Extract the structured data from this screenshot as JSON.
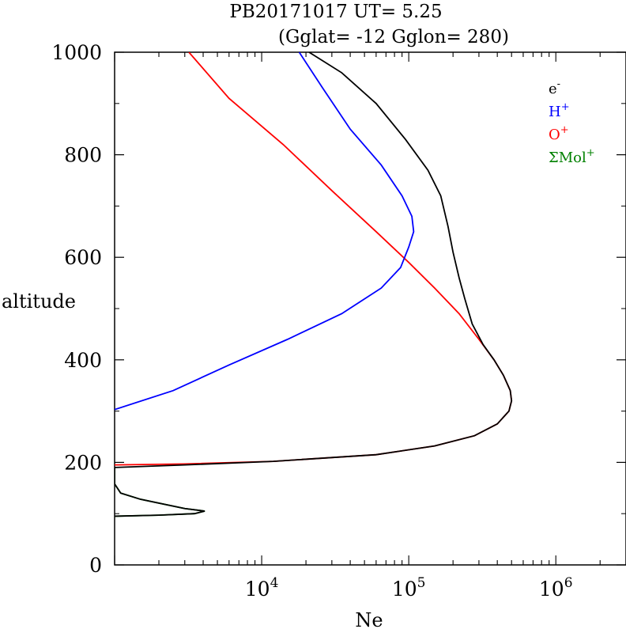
{
  "title_line1": "PB20171017   UT=  5.25",
  "title_line2": "(Gglat= -12   Gglon=  280)",
  "chart_data": {
    "type": "line",
    "xlabel": "Ne",
    "ylabel": "altitude",
    "x_scale": "log",
    "xlim": [
      1000,
      3000000
    ],
    "ylim": [
      0,
      1000
    ],
    "x_ticks": [
      {
        "value": 10000,
        "base": "10",
        "exp": "4"
      },
      {
        "value": 100000,
        "base": "10",
        "exp": "5"
      },
      {
        "value": 1000000,
        "base": "10",
        "exp": "6"
      }
    ],
    "y_ticks": [
      0,
      200,
      400,
      600,
      800,
      1000
    ],
    "legend_placement": "top-right",
    "series": [
      {
        "name": "e",
        "name_sup": "-",
        "color": "#000000",
        "points": [
          [
            1000,
            95
          ],
          [
            2000,
            97
          ],
          [
            3500,
            100
          ],
          [
            4100,
            105
          ],
          [
            3000,
            110
          ],
          [
            1500,
            128
          ],
          [
            1100,
            140
          ],
          [
            1000,
            158
          ],
          [
            1000,
            190
          ],
          [
            3000,
            195
          ],
          [
            12000,
            202
          ],
          [
            60000,
            215
          ],
          [
            150000,
            232
          ],
          [
            280000,
            252
          ],
          [
            400000,
            275
          ],
          [
            480000,
            300
          ],
          [
            500000,
            320
          ],
          [
            490000,
            340
          ],
          [
            440000,
            370
          ],
          [
            380000,
            400
          ],
          [
            320000,
            430
          ],
          [
            270000,
            470
          ],
          [
            240000,
            520
          ],
          [
            220000,
            560
          ],
          [
            200000,
            610
          ],
          [
            185000,
            660
          ],
          [
            165000,
            720
          ],
          [
            135000,
            770
          ],
          [
            95000,
            830
          ],
          [
            60000,
            900
          ],
          [
            35000,
            960
          ],
          [
            21000,
            1000
          ]
        ]
      },
      {
        "name": "H",
        "name_sup": "+",
        "color": "#0000ff",
        "points": [
          [
            1000,
            303
          ],
          [
            2500,
            340
          ],
          [
            6000,
            390
          ],
          [
            15000,
            440
          ],
          [
            35000,
            490
          ],
          [
            65000,
            540
          ],
          [
            88000,
            580
          ],
          [
            100000,
            620
          ],
          [
            108000,
            650
          ],
          [
            105000,
            680
          ],
          [
            90000,
            720
          ],
          [
            65000,
            780
          ],
          [
            40000,
            850
          ],
          [
            26000,
            930
          ],
          [
            18000,
            1000
          ]
        ]
      },
      {
        "name": "O",
        "name_sup": "+",
        "color": "#ff0000",
        "points": [
          [
            1000,
            195
          ],
          [
            3000,
            197
          ],
          [
            12000,
            202
          ],
          [
            60000,
            215
          ],
          [
            150000,
            232
          ],
          [
            280000,
            252
          ],
          [
            400000,
            275
          ],
          [
            480000,
            300
          ],
          [
            500000,
            320
          ],
          [
            490000,
            340
          ],
          [
            440000,
            370
          ],
          [
            380000,
            400
          ],
          [
            300000,
            440
          ],
          [
            220000,
            490
          ],
          [
            150000,
            540
          ],
          [
            100000,
            590
          ],
          [
            60000,
            650
          ],
          [
            30000,
            730
          ],
          [
            14000,
            820
          ],
          [
            6000,
            910
          ],
          [
            3200,
            1000
          ]
        ]
      },
      {
        "name": "ΣMol",
        "name_sup": "+",
        "color": "#008000",
        "points": [
          [
            1000,
            95
          ],
          [
            2000,
            97
          ],
          [
            3500,
            100
          ],
          [
            4100,
            105
          ],
          [
            3000,
            110
          ],
          [
            1500,
            128
          ],
          [
            1100,
            140
          ],
          [
            1000,
            158
          ],
          [
            1000,
            190
          ]
        ]
      }
    ]
  }
}
